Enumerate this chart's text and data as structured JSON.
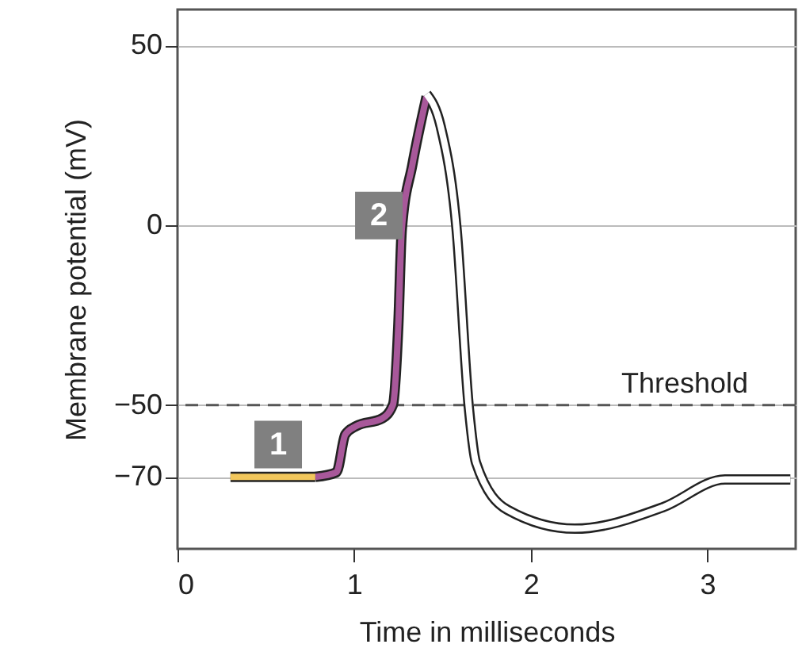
{
  "chart_data": {
    "type": "line",
    "xlabel": "Time in milliseconds",
    "ylabel": "Membrane potential (mV)",
    "xlim": [
      0,
      3.5
    ],
    "ylim": [
      -90,
      60
    ],
    "xticks": [
      0,
      1,
      2,
      3
    ],
    "yticks": [
      -70,
      -50,
      0,
      50
    ],
    "grid": "y",
    "line_style": "solid",
    "marker": "none",
    "series": [
      {
        "color": "#f2c75c",
        "x": [
          0.3,
          0.78
        ],
        "values": [
          -70,
          -70
        ]
      },
      {
        "color": "#a8589a",
        "x": [
          0.78,
          0.9,
          0.95,
          1.01,
          1.16,
          1.22,
          1.25,
          1.27,
          1.33,
          1.41
        ],
        "values": [
          -70,
          -68.7,
          -58.2,
          -55.9,
          -53.7,
          -49.9,
          -28.1,
          -1.1,
          16.9,
          35.8
        ]
      },
      {
        "color": "#ffffff",
        "x": [
          1.41,
          1.49,
          1.58,
          1.65,
          1.69,
          1.87,
          2.25,
          2.75,
          3.1,
          3.47
        ],
        "values": [
          36.5,
          27.5,
          -1,
          -51,
          -66,
          -79.2,
          -84.4,
          -78.4,
          -70.7,
          -70.7
        ]
      }
    ],
    "ref_lines": [
      {
        "axis": "y",
        "value": -50,
        "label": "Threshold",
        "line_style": "dashed",
        "color": "#555555"
      }
    ],
    "annotations": [
      {
        "text": "1",
        "x": 0.57,
        "y": -61
      },
      {
        "text": "2",
        "x": 1.14,
        "y": 2.7
      }
    ]
  }
}
